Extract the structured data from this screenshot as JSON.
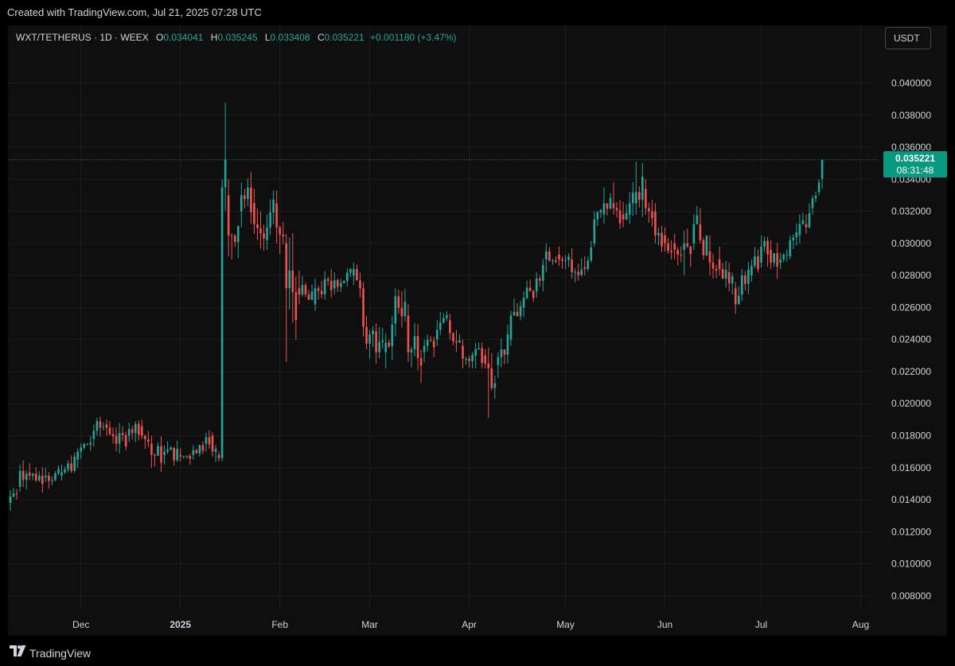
{
  "caption": "Created with TradingView.com, Jul 21, 2025 07:28 UTC",
  "legend": {
    "symbol": "WXT/TETHERUS · 1D · WEEX",
    "open_label": "O",
    "open": "0.034041",
    "high_label": "H",
    "high": "0.035245",
    "low_label": "L",
    "low": "0.033408",
    "close_label": "C",
    "close": "0.035221",
    "change": "+0.001180 (+3.47%)"
  },
  "currency_button": "USDT",
  "price_badge": {
    "price": "0.035221",
    "countdown": "08:31:48"
  },
  "footer": {
    "brand": "TradingView",
    "logo_icon": "tradingview-logo-icon"
  },
  "colors": {
    "up": "#26a69a",
    "down": "#ef5350",
    "badge": "#089981",
    "background": "#0f0f0f"
  },
  "chart_data": {
    "type": "candlestick",
    "symbol": "WXT/TETHERUS",
    "interval": "1D",
    "exchange": "WEEX",
    "last_price": 0.035221,
    "ylim": [
      0.0072,
      0.0436
    ],
    "y_ticks": [
      "0.040000",
      "0.038000",
      "0.036000",
      "0.034000",
      "0.032000",
      "0.030000",
      "0.028000",
      "0.026000",
      "0.024000",
      "0.022000",
      "0.020000",
      "0.018000",
      "0.016000",
      "0.014000",
      "0.012000",
      "0.010000",
      "0.008000"
    ],
    "x_ticks": [
      {
        "label": "Dec",
        "date": "2024-12-01"
      },
      {
        "label": "2025",
        "date": "2025-01-01"
      },
      {
        "label": "Feb",
        "date": "2025-02-01"
      },
      {
        "label": "Mar",
        "date": "2025-03-01"
      },
      {
        "label": "Apr",
        "date": "2025-04-01"
      },
      {
        "label": "May",
        "date": "2025-05-01"
      },
      {
        "label": "Jun",
        "date": "2025-06-01"
      },
      {
        "label": "Jul",
        "date": "2025-07-01"
      },
      {
        "label": "Aug",
        "date": "2025-08-01"
      }
    ],
    "start_date": "2024-11-09",
    "grid": true,
    "price_line": true,
    "anchors": [
      {
        "d": "2024-11-09",
        "o": 0.0138,
        "h": 0.0146,
        "l": 0.0133,
        "c": 0.0142
      },
      {
        "d": "2024-11-12",
        "o": 0.0148,
        "h": 0.0162,
        "l": 0.0145,
        "c": 0.0158
      },
      {
        "d": "2024-11-15",
        "o": 0.0157,
        "h": 0.0163,
        "l": 0.0152,
        "c": 0.0155
      },
      {
        "d": "2024-11-20",
        "o": 0.0154,
        "h": 0.016,
        "l": 0.0151,
        "c": 0.0155
      },
      {
        "d": "2024-11-25",
        "o": 0.0155,
        "h": 0.0162,
        "l": 0.0152,
        "c": 0.0157
      },
      {
        "d": "2024-11-30",
        "o": 0.0165,
        "h": 0.0172,
        "l": 0.016,
        "c": 0.017
      },
      {
        "d": "2024-12-05",
        "o": 0.0178,
        "h": 0.0187,
        "l": 0.0173,
        "c": 0.0183
      },
      {
        "d": "2024-12-09",
        "o": 0.0187,
        "h": 0.019,
        "l": 0.018,
        "c": 0.0185
      },
      {
        "d": "2024-12-12",
        "o": 0.018,
        "h": 0.0185,
        "l": 0.017,
        "c": 0.0175
      },
      {
        "d": "2024-12-16",
        "o": 0.018,
        "h": 0.0188,
        "l": 0.0176,
        "c": 0.0184
      },
      {
        "d": "2024-12-20",
        "o": 0.0186,
        "h": 0.019,
        "l": 0.0178,
        "c": 0.018
      },
      {
        "d": "2024-12-23",
        "o": 0.0175,
        "h": 0.018,
        "l": 0.016,
        "c": 0.0168
      },
      {
        "d": "2024-12-27",
        "o": 0.0168,
        "h": 0.0174,
        "l": 0.0162,
        "c": 0.017
      },
      {
        "d": "2025-01-01",
        "o": 0.0168,
        "h": 0.0172,
        "l": 0.0164,
        "c": 0.0167
      },
      {
        "d": "2025-01-05",
        "o": 0.0168,
        "h": 0.0174,
        "l": 0.0165,
        "c": 0.0171
      },
      {
        "d": "2025-01-09",
        "o": 0.0175,
        "h": 0.0182,
        "l": 0.017,
        "c": 0.0179
      },
      {
        "d": "2025-01-11",
        "o": 0.018,
        "h": 0.0182,
        "l": 0.0167,
        "c": 0.017
      },
      {
        "d": "2025-01-13",
        "o": 0.0168,
        "h": 0.017,
        "l": 0.0164,
        "c": 0.0166
      },
      {
        "d": "2025-01-14",
        "o": 0.0166,
        "h": 0.034,
        "l": 0.0164,
        "c": 0.0335
      },
      {
        "d": "2025-01-16",
        "o": 0.033,
        "h": 0.034,
        "l": 0.0292,
        "c": 0.0305
      },
      {
        "d": "2025-01-20",
        "o": 0.032,
        "h": 0.0338,
        "l": 0.031,
        "c": 0.033
      },
      {
        "d": "2025-01-24",
        "o": 0.0325,
        "h": 0.0334,
        "l": 0.0306,
        "c": 0.0312
      },
      {
        "d": "2025-01-28",
        "o": 0.0302,
        "h": 0.0318,
        "l": 0.0296,
        "c": 0.031
      },
      {
        "d": "2025-01-31",
        "o": 0.0325,
        "h": 0.0333,
        "l": 0.03,
        "c": 0.031
      },
      {
        "d": "2025-02-03",
        "o": 0.03,
        "h": 0.0306,
        "l": 0.0226,
        "c": 0.0272
      },
      {
        "d": "2025-02-07",
        "o": 0.0272,
        "h": 0.0283,
        "l": 0.0262,
        "c": 0.0268
      },
      {
        "d": "2025-02-12",
        "o": 0.0262,
        "h": 0.0278,
        "l": 0.0258,
        "c": 0.0272
      },
      {
        "d": "2025-02-18",
        "o": 0.0272,
        "h": 0.0282,
        "l": 0.0268,
        "c": 0.0277
      },
      {
        "d": "2025-02-24",
        "o": 0.028,
        "h": 0.0288,
        "l": 0.0274,
        "c": 0.0284
      },
      {
        "d": "2025-02-27",
        "o": 0.0272,
        "h": 0.0276,
        "l": 0.0242,
        "c": 0.0248
      },
      {
        "d": "2025-03-03",
        "o": 0.0245,
        "h": 0.025,
        "l": 0.0225,
        "c": 0.0232
      },
      {
        "d": "2025-03-06",
        "o": 0.0232,
        "h": 0.0244,
        "l": 0.0222,
        "c": 0.0238
      },
      {
        "d": "2025-03-09",
        "o": 0.025,
        "h": 0.0272,
        "l": 0.0242,
        "c": 0.0267
      },
      {
        "d": "2025-03-13",
        "o": 0.0255,
        "h": 0.0262,
        "l": 0.0226,
        "c": 0.0232
      },
      {
        "d": "2025-03-18",
        "o": 0.0232,
        "h": 0.024,
        "l": 0.0226,
        "c": 0.0236
      },
      {
        "d": "2025-03-22",
        "o": 0.024,
        "h": 0.0252,
        "l": 0.0236,
        "c": 0.0246
      },
      {
        "d": "2025-03-26",
        "o": 0.0252,
        "h": 0.0256,
        "l": 0.024,
        "c": 0.0244
      },
      {
        "d": "2025-03-30",
        "o": 0.0236,
        "h": 0.024,
        "l": 0.0222,
        "c": 0.0228
      },
      {
        "d": "2025-04-03",
        "o": 0.023,
        "h": 0.0238,
        "l": 0.0222,
        "c": 0.0234
      },
      {
        "d": "2025-04-06",
        "o": 0.023,
        "h": 0.0234,
        "l": 0.0222,
        "c": 0.0225
      },
      {
        "d": "2025-04-07",
        "o": 0.0225,
        "h": 0.0235,
        "l": 0.0191,
        "c": 0.0222
      },
      {
        "d": "2025-04-10",
        "o": 0.0224,
        "h": 0.0232,
        "l": 0.0216,
        "c": 0.0229
      },
      {
        "d": "2025-04-14",
        "o": 0.024,
        "h": 0.0258,
        "l": 0.0236,
        "c": 0.0255
      },
      {
        "d": "2025-04-18",
        "o": 0.026,
        "h": 0.027,
        "l": 0.0254,
        "c": 0.0266
      },
      {
        "d": "2025-04-22",
        "o": 0.027,
        "h": 0.0282,
        "l": 0.0266,
        "c": 0.0278
      },
      {
        "d": "2025-04-25",
        "o": 0.029,
        "h": 0.03,
        "l": 0.0282,
        "c": 0.0295
      },
      {
        "d": "2025-04-29",
        "o": 0.0293,
        "h": 0.0298,
        "l": 0.0286,
        "c": 0.029
      },
      {
        "d": "2025-05-03",
        "o": 0.029,
        "h": 0.0297,
        "l": 0.0278,
        "c": 0.0282
      },
      {
        "d": "2025-05-07",
        "o": 0.0285,
        "h": 0.0292,
        "l": 0.028,
        "c": 0.0284
      },
      {
        "d": "2025-05-10",
        "o": 0.03,
        "h": 0.032,
        "l": 0.0298,
        "c": 0.0315
      },
      {
        "d": "2025-05-13",
        "o": 0.0318,
        "h": 0.0335,
        "l": 0.0312,
        "c": 0.0325
      },
      {
        "d": "2025-05-16",
        "o": 0.0325,
        "h": 0.0338,
        "l": 0.0318,
        "c": 0.0322
      },
      {
        "d": "2025-05-19",
        "o": 0.0318,
        "h": 0.0326,
        "l": 0.031,
        "c": 0.0315
      },
      {
        "d": "2025-05-21",
        "o": 0.0318,
        "h": 0.0332,
        "l": 0.0312,
        "c": 0.0325
      },
      {
        "d": "2025-05-23",
        "o": 0.0325,
        "h": 0.0351,
        "l": 0.0318,
        "c": 0.0332
      },
      {
        "d": "2025-05-26",
        "o": 0.0334,
        "h": 0.034,
        "l": 0.0318,
        "c": 0.0322
      },
      {
        "d": "2025-05-29",
        "o": 0.032,
        "h": 0.0325,
        "l": 0.03,
        "c": 0.0305
      },
      {
        "d": "2025-06-01",
        "o": 0.0305,
        "h": 0.031,
        "l": 0.0295,
        "c": 0.03
      },
      {
        "d": "2025-06-04",
        "o": 0.03,
        "h": 0.0306,
        "l": 0.029,
        "c": 0.0296
      },
      {
        "d": "2025-06-07",
        "o": 0.0296,
        "h": 0.0308,
        "l": 0.028,
        "c": 0.03
      },
      {
        "d": "2025-06-10",
        "o": 0.03,
        "h": 0.0318,
        "l": 0.0296,
        "c": 0.0312
      },
      {
        "d": "2025-06-12",
        "o": 0.0312,
        "h": 0.0322,
        "l": 0.03,
        "c": 0.0302
      },
      {
        "d": "2025-06-15",
        "o": 0.0295,
        "h": 0.0305,
        "l": 0.028,
        "c": 0.0288
      },
      {
        "d": "2025-06-18",
        "o": 0.029,
        "h": 0.0298,
        "l": 0.028,
        "c": 0.0284
      },
      {
        "d": "2025-06-21",
        "o": 0.0282,
        "h": 0.0288,
        "l": 0.027,
        "c": 0.0275
      },
      {
        "d": "2025-06-23",
        "o": 0.0272,
        "h": 0.0276,
        "l": 0.0256,
        "c": 0.0262
      },
      {
        "d": "2025-06-25",
        "o": 0.0268,
        "h": 0.0284,
        "l": 0.0264,
        "c": 0.028
      },
      {
        "d": "2025-06-28",
        "o": 0.028,
        "h": 0.029,
        "l": 0.0276,
        "c": 0.0286
      },
      {
        "d": "2025-07-01",
        "o": 0.0288,
        "h": 0.0305,
        "l": 0.0285,
        "c": 0.0298
      },
      {
        "d": "2025-07-04",
        "o": 0.0296,
        "h": 0.0302,
        "l": 0.0284,
        "c": 0.0288
      },
      {
        "d": "2025-07-07",
        "o": 0.0288,
        "h": 0.0294,
        "l": 0.0284,
        "c": 0.029
      },
      {
        "d": "2025-07-10",
        "o": 0.0292,
        "h": 0.0305,
        "l": 0.029,
        "c": 0.0302
      },
      {
        "d": "2025-07-13",
        "o": 0.0305,
        "h": 0.0318,
        "l": 0.03,
        "c": 0.0312
      },
      {
        "d": "2025-07-15",
        "o": 0.0312,
        "h": 0.0318,
        "l": 0.0306,
        "c": 0.031
      },
      {
        "d": "2025-07-17",
        "o": 0.0322,
        "h": 0.033,
        "l": 0.0318,
        "c": 0.0328
      },
      {
        "d": "2025-07-19",
        "o": 0.0332,
        "h": 0.034,
        "l": 0.033,
        "c": 0.0338
      },
      {
        "d": "2025-07-20",
        "o": 0.03404,
        "h": 0.03524,
        "l": 0.03341,
        "c": 0.03522
      }
    ]
  }
}
